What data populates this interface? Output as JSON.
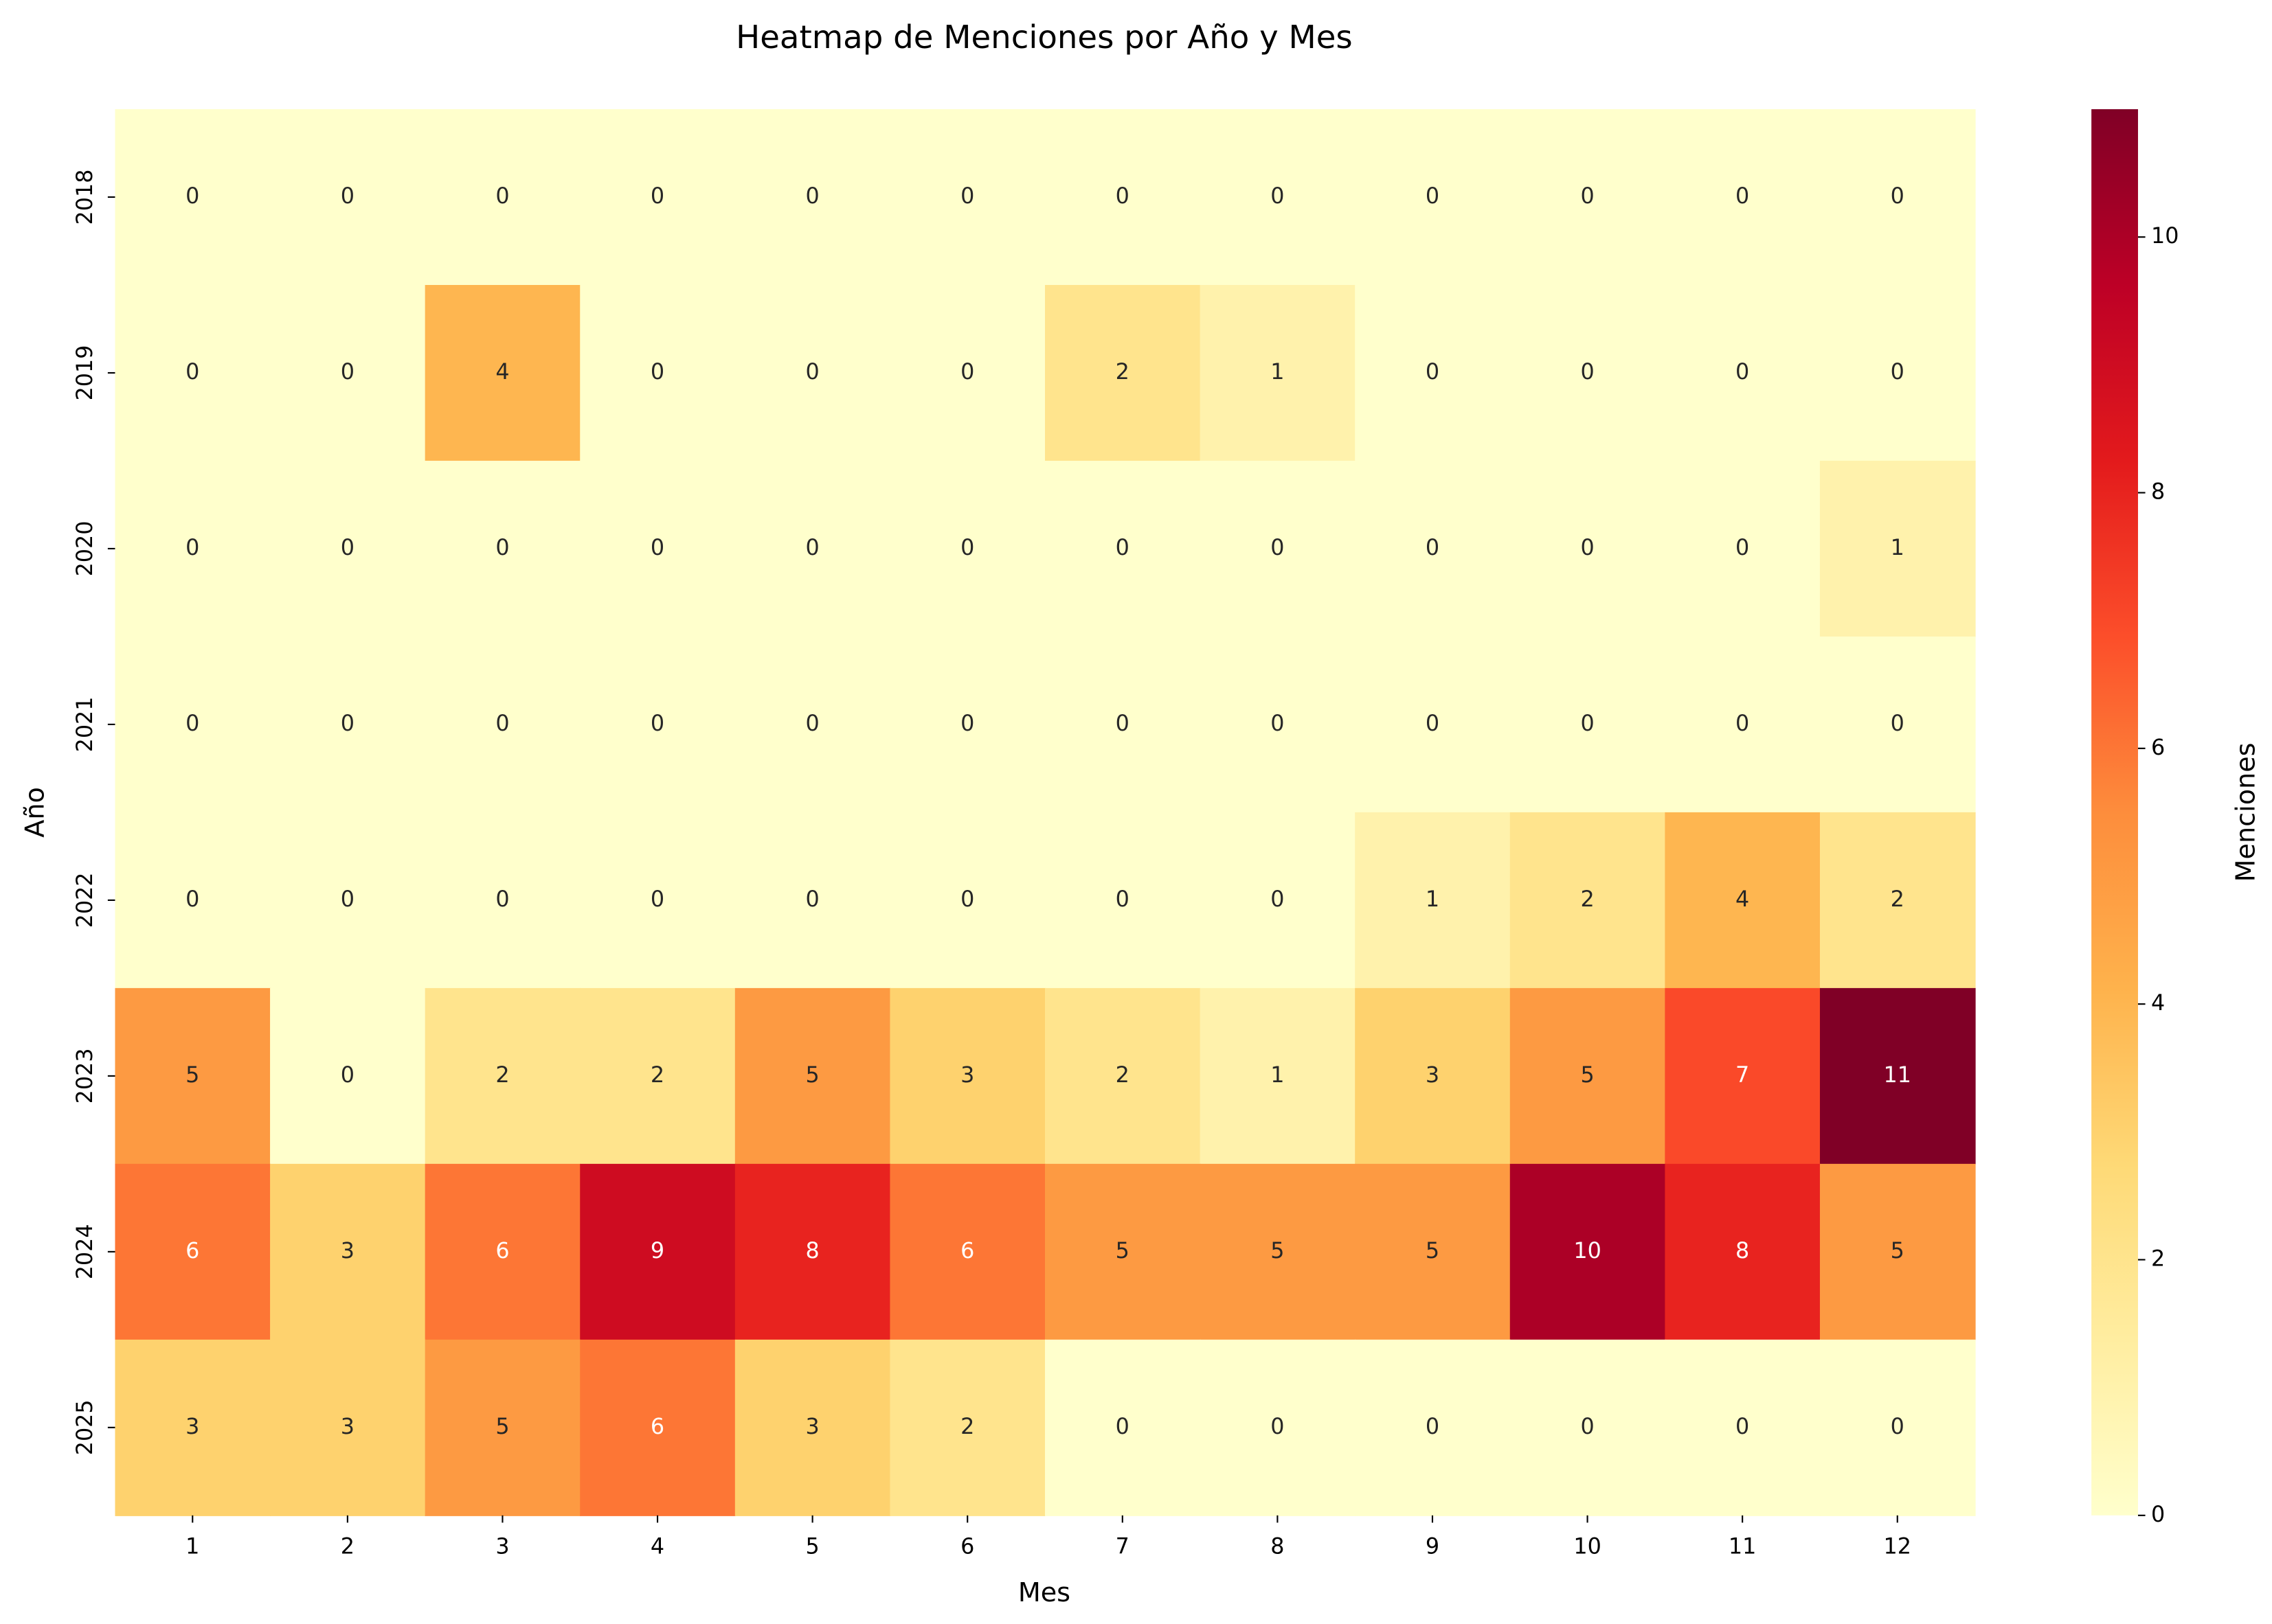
{
  "chart_data": {
    "type": "heatmap",
    "title": "Heatmap de Menciones por Año y Mes",
    "x_label": "Mes",
    "y_label": "Año",
    "colorbar_label": "Menciones",
    "categories": [
      1,
      2,
      3,
      4,
      5,
      6,
      7,
      8,
      9,
      10,
      11,
      12
    ],
    "rows": [
      2018,
      2019,
      2020,
      2021,
      2022,
      2023,
      2024,
      2025
    ],
    "values": [
      [
        0,
        0,
        0,
        0,
        0,
        0,
        0,
        0,
        0,
        0,
        0,
        0
      ],
      [
        0,
        0,
        4,
        0,
        0,
        0,
        2,
        1,
        0,
        0,
        0,
        0
      ],
      [
        0,
        0,
        0,
        0,
        0,
        0,
        0,
        0,
        0,
        0,
        0,
        1
      ],
      [
        0,
        0,
        0,
        0,
        0,
        0,
        0,
        0,
        0,
        0,
        0,
        0
      ],
      [
        0,
        0,
        0,
        0,
        0,
        0,
        0,
        0,
        1,
        2,
        4,
        2
      ],
      [
        5,
        0,
        2,
        2,
        5,
        3,
        2,
        1,
        3,
        5,
        7,
        11
      ],
      [
        6,
        3,
        6,
        9,
        8,
        6,
        5,
        5,
        5,
        10,
        8,
        5
      ],
      [
        3,
        3,
        5,
        6,
        3,
        2,
        0,
        0,
        0,
        0,
        0,
        0
      ]
    ],
    "colors": [
      "#ffffcc",
      "#ffeda0",
      "#fed976",
      "#feb24c",
      "#fd8d3c",
      "#fc4e2a",
      "#e31a1c",
      "#bd0026",
      "#800026"
    ],
    "clim": [
      0,
      11
    ],
    "cticks": [
      0,
      2,
      4,
      6,
      8,
      10
    ]
  }
}
